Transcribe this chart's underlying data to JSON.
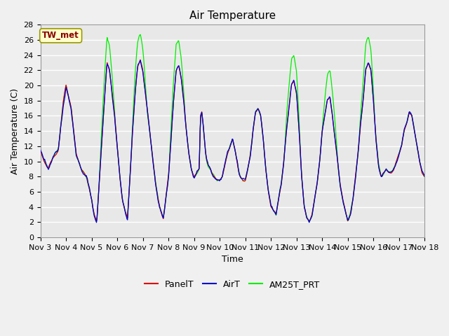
{
  "title": "Air Temperature",
  "xlabel": "Time",
  "ylabel": "Air Temperature (C)",
  "ylim": [
    0,
    28
  ],
  "xlim_labels": [
    "Nov 3",
    "Nov 4",
    "Nov 5",
    "Nov 6",
    "Nov 7",
    "Nov 8",
    "Nov 9",
    "Nov 10",
    "Nov 11",
    "Nov 12",
    "Nov 13",
    "Nov 14",
    "Nov 15",
    "Nov 16",
    "Nov 17",
    "Nov 18"
  ],
  "series_colors": {
    "PanelT": "#dd0000",
    "AirT": "#0000cc",
    "AM25T_PRT": "#00ee00"
  },
  "legend_label": "TW_met",
  "legend_box_facecolor": "#ffffcc",
  "legend_box_edgecolor": "#999900",
  "legend_text_color": "#880000",
  "fig_facecolor": "#f0f0f0",
  "plot_facecolor": "#e8e8e8",
  "grid_color": "white",
  "title_fontsize": 11,
  "label_fontsize": 9,
  "tick_fontsize": 8
}
